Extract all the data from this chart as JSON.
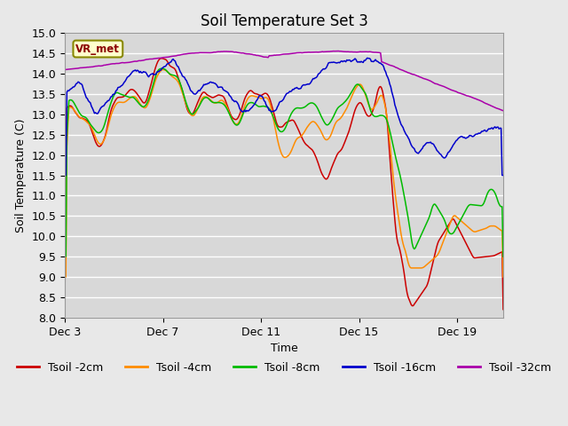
{
  "title": "Soil Temperature Set 3",
  "xlabel": "Time",
  "ylabel": "Soil Temperature (C)",
  "ylim": [
    8.0,
    15.0
  ],
  "yticks": [
    8.0,
    8.5,
    9.0,
    9.5,
    10.0,
    10.5,
    11.0,
    11.5,
    12.0,
    12.5,
    13.0,
    13.5,
    14.0,
    14.5,
    15.0
  ],
  "xtick_labels": [
    "Dec 3",
    "Dec 7",
    "Dec 11",
    "Dec 15",
    "Dec 19"
  ],
  "xtick_positions": [
    0,
    96,
    192,
    288,
    384
  ],
  "total_points": 430,
  "colors": {
    "t2": "#cc0000",
    "t4": "#ff8c00",
    "t8": "#00bb00",
    "t16": "#0000cc",
    "t32": "#aa00aa"
  },
  "legend_label": "VR_met",
  "bg_color": "#d8d8d8",
  "fig_bg": "#e8e8e8",
  "grid_color": "#ffffff",
  "title_fontsize": 12,
  "axis_fontsize": 9,
  "ylabel_fontsize": 9,
  "linewidth": 1.1,
  "legend_fontsize": 9
}
